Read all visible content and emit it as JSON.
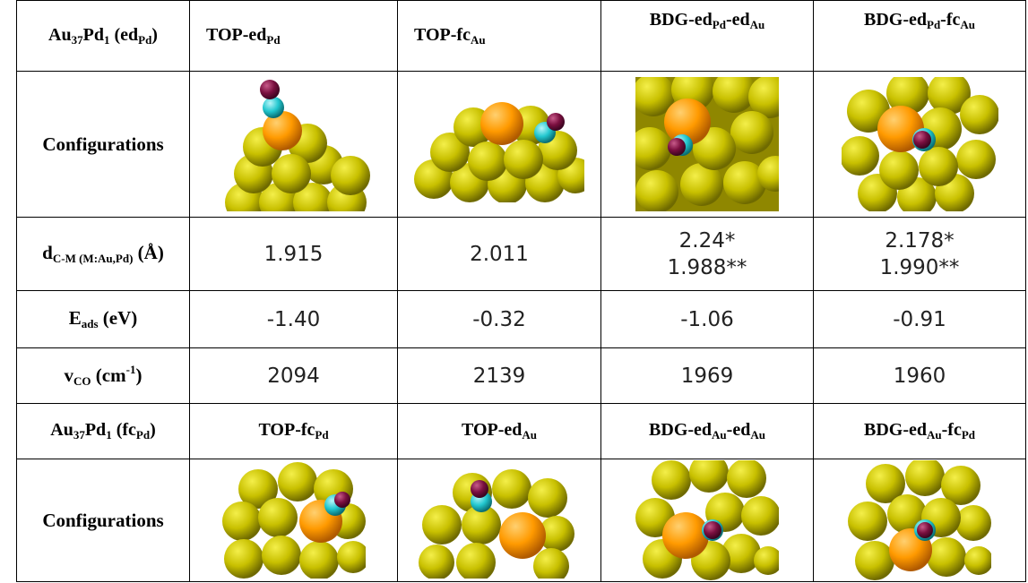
{
  "table": {
    "section1": {
      "corner": {
        "main": "Au",
        "sub1": "37",
        "main2": "Pd",
        "sub2": "1",
        "paren_main": "(ed",
        "paren_sub": "Pd",
        "paren_close": ")"
      },
      "headers": [
        {
          "a": "TOP-ed",
          "a_sub": "Pd",
          "b": "",
          "b_sub": ""
        },
        {
          "a": "TOP-fc",
          "a_sub": "Au",
          "b": "",
          "b_sub": ""
        },
        {
          "a": "BDG-ed",
          "a_sub": "Pd",
          "b": "-ed",
          "b_sub": "Au"
        },
        {
          "a": "BDG-ed",
          "a_sub": "Pd",
          "b": "-fc",
          "b_sub": "Au"
        }
      ],
      "row_configurations": "Configurations",
      "row_d": {
        "main": "d",
        "sub": "C-M (M:Au,Pd)",
        "rest": " (Å)"
      },
      "d_values": [
        {
          "l1": "1.915",
          "l2": ""
        },
        {
          "l1": "2.011",
          "l2": ""
        },
        {
          "l1": "2.24*",
          "l2": "1.988**"
        },
        {
          "l1": "2.178*",
          "l2": "1.990**"
        }
      ],
      "row_e": {
        "main": "E",
        "sub": "ads",
        "rest": " (eV)"
      },
      "e_values": [
        "-1.40",
        "-0.32",
        "-1.06",
        "-0.91"
      ],
      "row_v": {
        "main": "v",
        "sub": "CO",
        "rest": " (cm",
        "sup": "-1",
        "close": ")"
      },
      "v_values": [
        "2094",
        "2139",
        "1969",
        "1960"
      ]
    },
    "section2": {
      "corner": {
        "main": "Au",
        "sub1": "37",
        "main2": "Pd",
        "sub2": "1",
        "paren_main": "(fc",
        "paren_sub": "Pd",
        "paren_close": ")"
      },
      "headers": [
        {
          "a": "TOP-fc",
          "a_sub": "Pd",
          "b": "",
          "b_sub": ""
        },
        {
          "a": "TOP-ed",
          "a_sub": "Au",
          "b": "",
          "b_sub": ""
        },
        {
          "a": "BDG-ed",
          "a_sub": "Au",
          "b": "-ed",
          "b_sub": "Au"
        },
        {
          "a": "BDG-ed",
          "a_sub": "Au",
          "b": "-fc",
          "b_sub": "Pd"
        }
      ],
      "row_configurations": "Configurations"
    },
    "colors": {
      "gold": "#d4cc00",
      "palladium": "#ff9a00",
      "carbon": "#22c7cf",
      "oxygen": "#7a0f3f"
    }
  }
}
